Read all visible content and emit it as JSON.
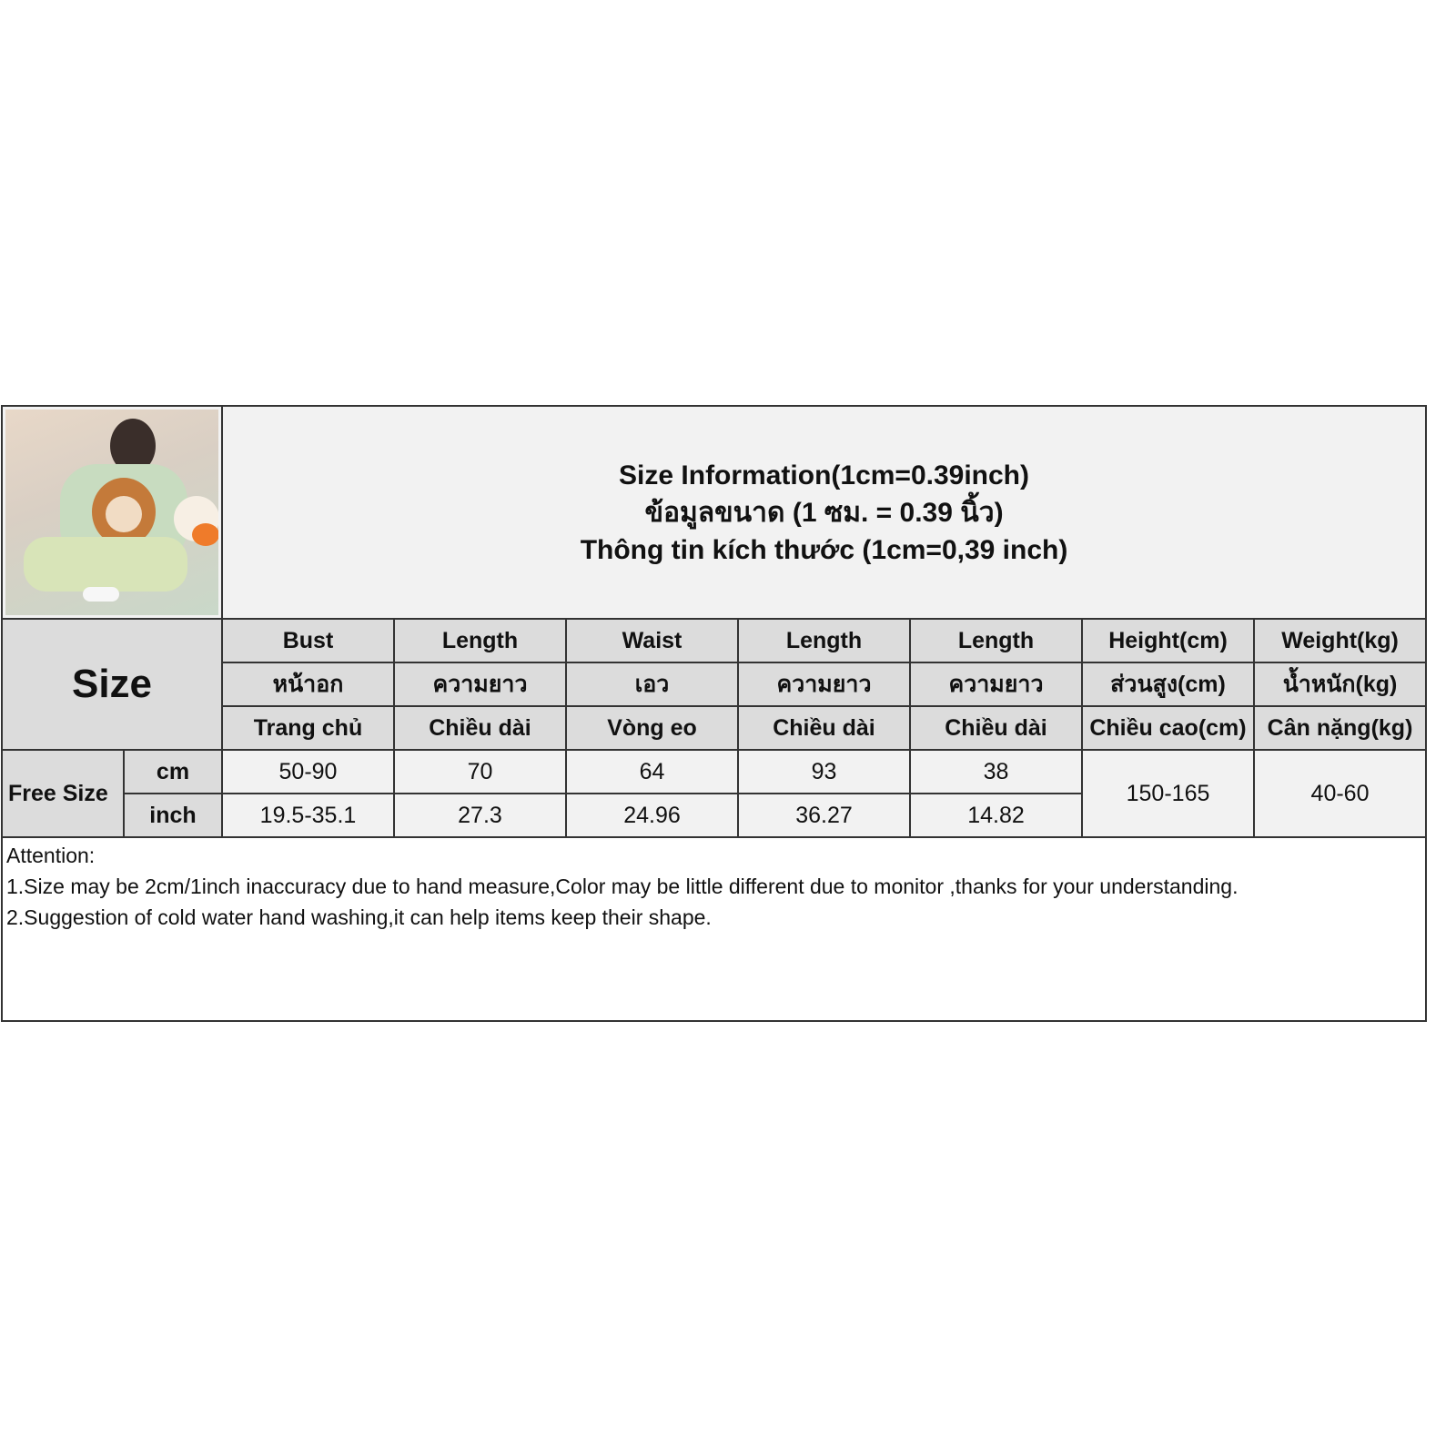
{
  "title": {
    "line1": "Size Information(1cm=0.39inch)",
    "line2": "ข้อมูลขนาด (1 ซม. = 0.39 นิ้ว)",
    "line3": "Thông tin kích thước (1cm=0,39 inch)"
  },
  "size_label": "Size",
  "columns": [
    {
      "en": "Bust",
      "th": "หน้าอก",
      "vi": "Trang chủ"
    },
    {
      "en": "Length",
      "th": "ความยาว",
      "vi": "Chiều dài"
    },
    {
      "en": "Waist",
      "th": "เอว",
      "vi": "Vòng eo"
    },
    {
      "en": "Length",
      "th": "ความยาว",
      "vi": "Chiều dài"
    },
    {
      "en": "Length",
      "th": "ความยาว",
      "vi": "Chiều dài"
    },
    {
      "en": "Height(cm)",
      "th": "ส่วนสูง(cm)",
      "vi": "Chiều cao(cm)"
    },
    {
      "en": "Weight(kg)",
      "th": "น้ำหนัก(kg)",
      "vi": "Cân nặng(kg)"
    }
  ],
  "row": {
    "size": "Free Size",
    "cm_label": "cm",
    "inch_label": "inch",
    "cm": [
      "50-90",
      "70",
      "64",
      "93",
      "38"
    ],
    "inch": [
      "19.5-35.1",
      "27.3",
      "24.96",
      "36.27",
      "14.82"
    ],
    "height": "150-165",
    "weight": "40-60"
  },
  "notes": {
    "heading": "Attention:",
    "items": [
      "1.Size may be 2cm/1inch inaccuracy due to hand measure,Color may be little different due to monitor ,thanks for your understanding.",
      "2.Suggestion of cold water hand washing,it can help items keep their shape."
    ]
  }
}
